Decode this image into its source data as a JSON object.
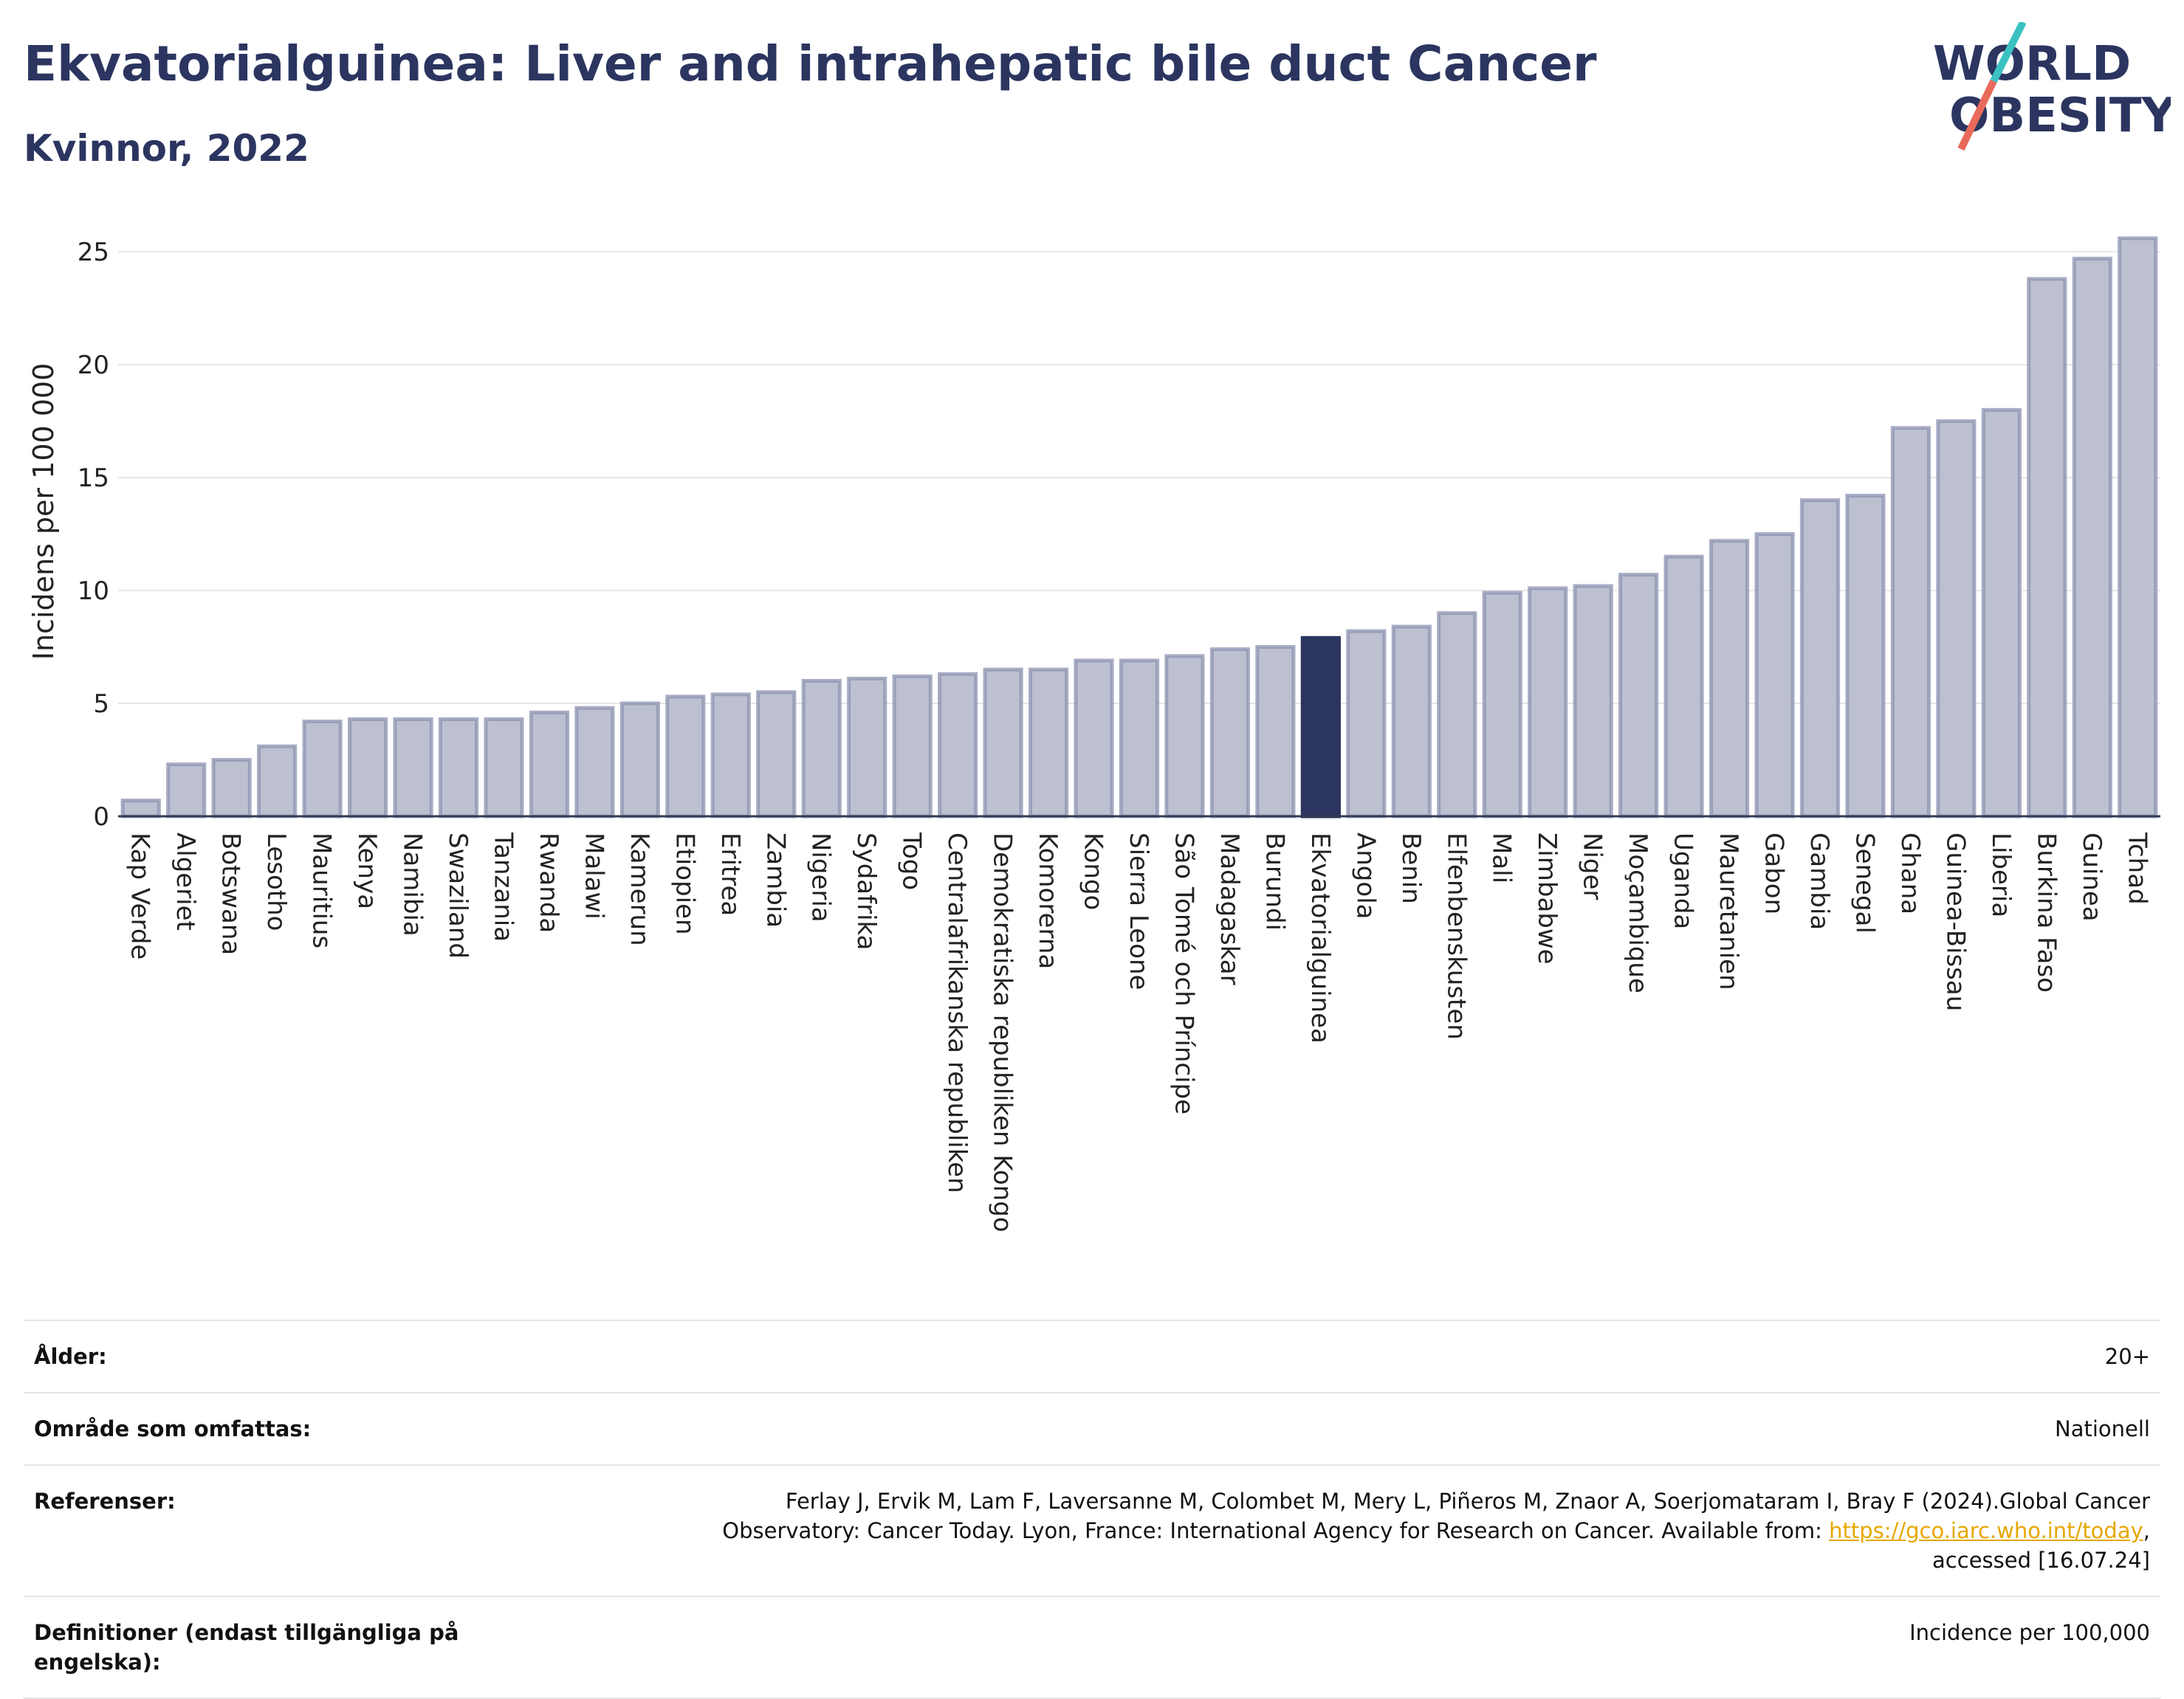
{
  "header": {
    "title": "Ekvatorialguinea: Liver and intrahepatic bile duct Cancer",
    "subtitle": "Kvinnor, 2022"
  },
  "logo": {
    "line1": "WORLD",
    "line2": "OBESITY",
    "colors": {
      "text": "#2b3560",
      "slash_teal": "#3cc1c1",
      "slash_red": "#e86a5a"
    }
  },
  "chart_data": {
    "type": "bar",
    "ylabel": "Incidens per 100 000",
    "ylim": [
      0,
      27
    ],
    "yticks": [
      0,
      5,
      10,
      15,
      20,
      25
    ],
    "grid": true,
    "highlight": "Ekvatorialguinea",
    "colors": {
      "bar": "#bcc0d0",
      "bar_stroke": "#8c93b0",
      "highlight": "#2b3560"
    },
    "categories": [
      "Kap Verde",
      "Algeriet",
      "Botswana",
      "Lesotho",
      "Mauritius",
      "Kenya",
      "Namibia",
      "Swaziland",
      "Tanzania",
      "Rwanda",
      "Malawi",
      "Kamerun",
      "Etiopien",
      "Eritrea",
      "Zambia",
      "Nigeria",
      "Sydafrika",
      "Togo",
      "Centralafrikanska republiken",
      "Demokratiska republiken Kongo",
      "Komorerna",
      "Kongo",
      "Sierra Leone",
      "São Tomé och Príncipe",
      "Madagaskar",
      "Burundi",
      "Ekvatorialguinea",
      "Angola",
      "Benin",
      "Elfenbenskusten",
      "Mali",
      "Zimbabwe",
      "Niger",
      "Moçambique",
      "Uganda",
      "Mauretanien",
      "Gabon",
      "Gambia",
      "Senegal",
      "Ghana",
      "Guinea-Bissau",
      "Liberia",
      "Burkina Faso",
      "Guinea",
      "Tchad"
    ],
    "values": [
      0.7,
      2.3,
      2.5,
      3.1,
      4.2,
      4.3,
      4.3,
      4.3,
      4.3,
      4.6,
      4.8,
      5.0,
      5.3,
      5.4,
      5.5,
      6.0,
      6.1,
      6.2,
      6.3,
      6.5,
      6.5,
      6.9,
      6.9,
      7.1,
      7.4,
      7.5,
      7.9,
      8.2,
      8.4,
      9.0,
      9.9,
      10.1,
      10.2,
      10.7,
      11.5,
      12.2,
      12.5,
      14.0,
      14.2,
      17.2,
      17.5,
      18.0,
      23.8,
      24.7,
      25.6
    ]
  },
  "info": {
    "rows": [
      {
        "label": "Ålder:",
        "value": "20+"
      },
      {
        "label": "Område som omfattas:",
        "value": "Nationell"
      },
      {
        "label": "Referenser:",
        "value_lines": [
          "Ferlay J, Ervik M, Lam F, Laversanne M, Colombet M, Mery L, Piñeros M, Znaor A, Soerjomataram I, Bray F (2024).Global Cancer",
          "Observatory: Cancer Today. Lyon, France: International Agency for Research on Cancer. Available from: ",
          "https://gco.iarc.who.int/today",
          ",",
          "accessed [16.07.24]"
        ]
      },
      {
        "label": "Definitioner (endast tillgängliga på engelska):",
        "value": "Incidence per 100,000"
      }
    ]
  }
}
